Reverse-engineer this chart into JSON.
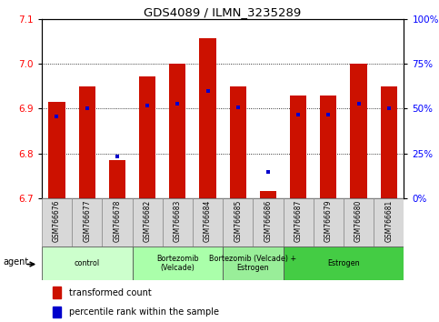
{
  "title": "GDS4089 / ILMN_3235289",
  "samples": [
    "GSM766676",
    "GSM766677",
    "GSM766678",
    "GSM766682",
    "GSM766683",
    "GSM766684",
    "GSM766685",
    "GSM766686",
    "GSM766687",
    "GSM766679",
    "GSM766680",
    "GSM766681"
  ],
  "red_values": [
    6.915,
    6.95,
    6.785,
    6.972,
    7.0,
    7.058,
    6.95,
    6.715,
    6.93,
    6.93,
    7.0,
    6.95
  ],
  "blue_values": [
    6.883,
    6.9,
    6.793,
    6.908,
    6.912,
    6.94,
    6.902,
    6.758,
    6.886,
    6.887,
    6.912,
    6.9
  ],
  "ylim_left": [
    6.7,
    7.1
  ],
  "ylim_right": [
    0,
    100
  ],
  "yticks_left": [
    6.7,
    6.8,
    6.9,
    7.0,
    7.1
  ],
  "yticks_right": [
    0,
    25,
    50,
    75,
    100
  ],
  "ytick_labels_right": [
    "0%",
    "25%",
    "50%",
    "75%",
    "100%"
  ],
  "groups": [
    {
      "label": "control",
      "indices": [
        0,
        1,
        2
      ],
      "color": "#ccffcc"
    },
    {
      "label": "Bortezomib\n(Velcade)",
      "indices": [
        3,
        4,
        5
      ],
      "color": "#aaffaa"
    },
    {
      "label": "Bortezomib (Velcade) +\nEstrogen",
      "indices": [
        6,
        7
      ],
      "color": "#99ee99"
    },
    {
      "label": "Estrogen",
      "indices": [
        8,
        9,
        10,
        11
      ],
      "color": "#44cc44"
    }
  ],
  "bar_color": "#cc1100",
  "dot_color": "#0000cc",
  "bar_bottom": 6.7,
  "legend_red": "transformed count",
  "legend_blue": "percentile rank within the sample",
  "agent_label": "agent",
  "bar_width": 0.55,
  "grid_lines": [
    6.8,
    6.9,
    7.0
  ],
  "xlabel_color": "#555555",
  "cell_bg": "#d8d8d8"
}
